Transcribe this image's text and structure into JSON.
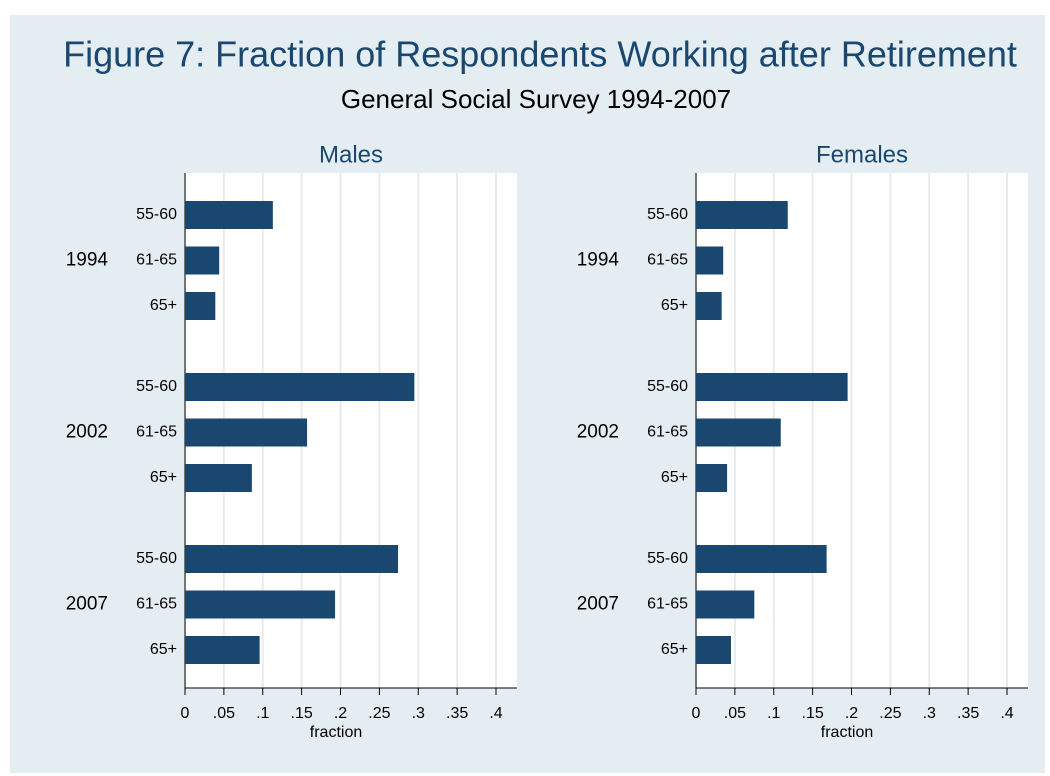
{
  "title": "Figure 7: Fraction of Respondents Working after Retirement",
  "subtitle": "General Social Survey 1994-2007",
  "chart_data": [
    {
      "type": "hbar",
      "title": "Males",
      "xlabel": "fraction",
      "color": "#1a476f",
      "groups": [
        "1994",
        "2002",
        "2007"
      ],
      "categories": [
        "55-60",
        "61-65",
        "65+",
        "55-60",
        "61-65",
        "65+",
        "55-60",
        "61-65",
        "65+"
      ],
      "values": [
        0.113,
        0.044,
        0.039,
        0.295,
        0.157,
        0.086,
        0.274,
        0.193,
        0.096
      ],
      "xlim": [
        0,
        0.427
      ],
      "xticks": [
        0,
        {
          "value": 0.05,
          "label": ".05"
        },
        {
          "value": 0.1,
          "label": ".1"
        },
        {
          "value": 0.15,
          "label": ".15"
        },
        {
          "value": 0.2,
          "label": ".2"
        },
        {
          "value": 0.25,
          "label": ".25"
        },
        {
          "value": 0.3,
          "label": ".3"
        },
        {
          "value": 0.35,
          "label": ".35"
        },
        {
          "value": 0.4,
          "label": ".4"
        }
      ],
      "grid": true
    },
    {
      "type": "hbar",
      "title": "Females",
      "xlabel": "fraction",
      "color": "#1a476f",
      "groups": [
        "1994",
        "2002",
        "2007"
      ],
      "categories": [
        "55-60",
        "61-65",
        "65+",
        "55-60",
        "61-65",
        "65+",
        "55-60",
        "61-65",
        "65+"
      ],
      "values": [
        0.118,
        0.035,
        0.033,
        0.195,
        0.109,
        0.04,
        0.168,
        0.075,
        0.045
      ],
      "xlim": [
        0,
        0.427
      ],
      "xticks": [
        0,
        {
          "value": 0.05,
          "label": ".05"
        },
        {
          "value": 0.1,
          "label": ".1"
        },
        {
          "value": 0.15,
          "label": ".15"
        },
        {
          "value": 0.2,
          "label": ".2"
        },
        {
          "value": 0.25,
          "label": ".25"
        },
        {
          "value": 0.3,
          "label": ".3"
        },
        {
          "value": 0.35,
          "label": ".35"
        },
        {
          "value": 0.4,
          "label": ".4"
        }
      ],
      "grid": true
    }
  ]
}
